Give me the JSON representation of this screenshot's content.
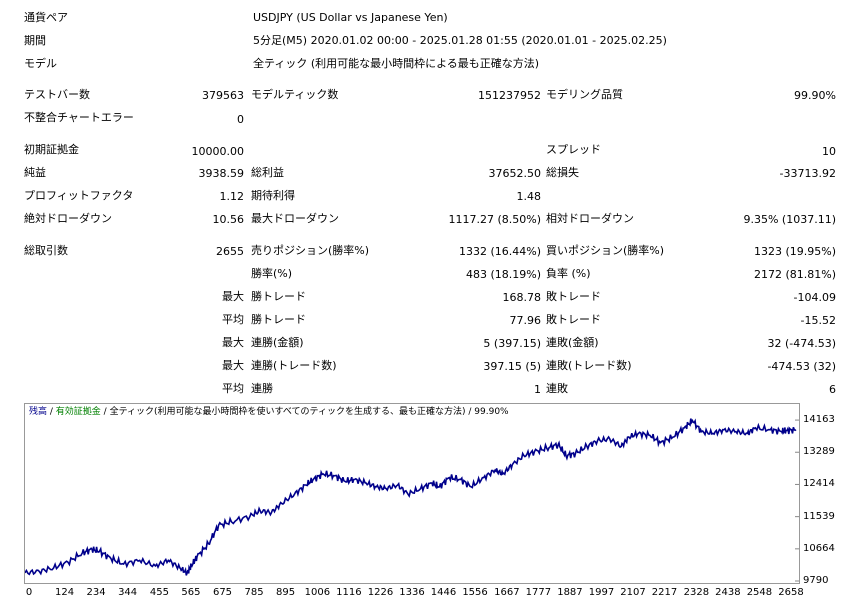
{
  "report": {
    "symbol_label": "通貨ペア",
    "symbol_value": "USDJPY (US Dollar vs Japanese Yen)",
    "period_label": "期間",
    "period_value": "5分足(M5) 2020.01.02 00:00 - 2025.01.28 01:55 (2020.01.01 - 2025.02.25)",
    "model_label": "モデル",
    "model_value": "全ティック (利用可能な最小時間枠による最も正確な方法)"
  },
  "stats": {
    "bars_label": "テストバー数",
    "bars_value": "379563",
    "ticks_label": "モデルティック数",
    "ticks_value": "151237952",
    "quality_label": "モデリング品質",
    "quality_value": "99.90%",
    "mismatch_label": "不整合チャートエラー",
    "mismatch_value": "0",
    "deposit_label": "初期証拠金",
    "deposit_value": "10000.00",
    "spread_label": "スプレッド",
    "spread_value": "10",
    "net_label": "純益",
    "net_value": "3938.59",
    "gross_profit_label": "総利益",
    "gross_profit_value": "37652.50",
    "gross_loss_label": "総損失",
    "gross_loss_value": "-33713.92",
    "pf_label": "プロフィットファクタ",
    "pf_value": "1.12",
    "payoff_label": "期待利得",
    "payoff_value": "1.48",
    "abs_dd_label": "絶対ドローダウン",
    "abs_dd_value": "10.56",
    "max_dd_label": "最大ドローダウン",
    "max_dd_value": "1117.27 (8.50%)",
    "rel_dd_label": "相対ドローダウン",
    "rel_dd_value": "9.35% (1037.11)",
    "total_trades_label": "総取引数",
    "total_trades_value": "2655",
    "short_label": "売りポジション(勝率%)",
    "short_value": "1332 (16.44%)",
    "long_label": "買いポジション(勝率%)",
    "long_value": "1323 (19.95%)",
    "win_rate_label": "勝率(%)",
    "win_rate_value": "483 (18.19%)",
    "loss_rate_label": "負率 (%)",
    "loss_rate_value": "2172 (81.81%)",
    "largest_prefix": "最大",
    "largest_win_label": "勝トレード",
    "largest_win_value": "168.78",
    "largest_loss_label": "敗トレード",
    "largest_loss_value": "-104.09",
    "avg_prefix": "平均",
    "avg_win_label": "勝トレード",
    "avg_win_value": "77.96",
    "avg_loss_label": "敗トレード",
    "avg_loss_value": "-15.52",
    "max_cons_prefix": "最大",
    "cons_wins_money_label": "連勝(金額)",
    "cons_wins_money_value": "5 (397.15)",
    "cons_losses_money_label": "連敗(金額)",
    "cons_losses_money_value": "32 (-474.53)",
    "max_cons2_prefix": "最大",
    "cons_wins_count_label": "連勝(トレード数)",
    "cons_wins_count_value": "397.15 (5)",
    "cons_losses_count_label": "連敗(トレード数)",
    "cons_losses_count_value": "-474.53 (32)",
    "avg_cons_prefix": "平均",
    "avg_cons_wins_label": "連勝",
    "avg_cons_wins_value": "1",
    "avg_cons_losses_label": "連敗",
    "avg_cons_losses_value": "6"
  },
  "chart_data": {
    "type": "line",
    "legend": {
      "balance": "残高",
      "sep1": " / ",
      "equity": "有効証拠金",
      "sep2": " / ",
      "model": "全ティック(利用可能な最小時間枠を使いすべてのティックを生成する、最も正確な方法)",
      "sep3": " / ",
      "quality": "99.90%"
    },
    "ylim": [
      9790,
      14600
    ],
    "y_ticks": [
      "14163",
      "13289",
      "12414",
      "11539",
      "10664",
      "9790"
    ],
    "y_tick_values": [
      14163,
      13289,
      12414,
      11539,
      10664,
      9790
    ],
    "xlim": [
      0,
      2700
    ],
    "x_ticks": [
      "0",
      "124",
      "234",
      "344",
      "455",
      "565",
      "675",
      "785",
      "895",
      "1006",
      "1116",
      "1226",
      "1336",
      "1446",
      "1556",
      "1667",
      "1777",
      "1887",
      "1997",
      "2107",
      "2217",
      "2328",
      "2438",
      "2548",
      "2658"
    ],
    "x_tick_values": [
      0,
      124,
      234,
      344,
      455,
      565,
      675,
      785,
      895,
      1006,
      1116,
      1226,
      1336,
      1446,
      1556,
      1667,
      1777,
      1887,
      1997,
      2107,
      2217,
      2328,
      2438,
      2548,
      2658
    ],
    "x": [
      0,
      50,
      100,
      150,
      200,
      234,
      260,
      300,
      344,
      400,
      455,
      500,
      540,
      565,
      580,
      600,
      640,
      675,
      720,
      785,
      820,
      860,
      895,
      940,
      980,
      1006,
      1040,
      1080,
      1116,
      1150,
      1190,
      1226,
      1260,
      1300,
      1336,
      1380,
      1420,
      1446,
      1480,
      1520,
      1556,
      1600,
      1640,
      1667,
      1700,
      1740,
      1777,
      1820,
      1860,
      1887,
      1920,
      1960,
      1997,
      2040,
      2080,
      2107,
      2140,
      2180,
      2217,
      2260,
      2300,
      2328,
      2360,
      2400,
      2438,
      2480,
      2520,
      2548,
      2600,
      2640,
      2658,
      2690
    ],
    "series": [
      {
        "color": "#00008b",
        "values": [
          10010,
          10050,
          10150,
          10300,
          10550,
          10650,
          10600,
          10400,
          10250,
          10350,
          10200,
          10350,
          10150,
          10000,
          10200,
          10450,
          10800,
          11300,
          11400,
          11550,
          11700,
          11650,
          11900,
          12150,
          12400,
          12550,
          12700,
          12650,
          12500,
          12550,
          12450,
          12350,
          12300,
          12400,
          12150,
          12300,
          12450,
          12350,
          12600,
          12550,
          12350,
          12600,
          12800,
          12700,
          12950,
          13200,
          13300,
          13400,
          13500,
          13200,
          13250,
          13450,
          13600,
          13650,
          13450,
          13700,
          13800,
          13750,
          13550,
          13700,
          13950,
          14150,
          13850,
          13800,
          13900,
          13850,
          13800,
          13950,
          13900,
          13850,
          13880,
          13900
        ]
      }
    ]
  }
}
